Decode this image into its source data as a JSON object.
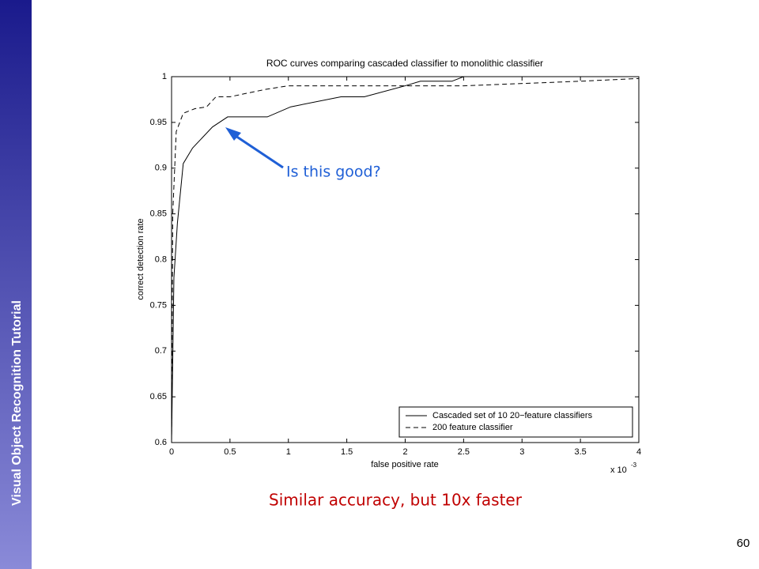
{
  "slide": {
    "sidebar_title": "Visual Object Recognition Tutorial",
    "page_number": "60",
    "annotation": "Is this good?",
    "caption": "Similar accuracy, but 10x faster"
  },
  "chart_data": {
    "type": "line",
    "title": "ROC curves comparing cascaded classifier to monolithic classifier",
    "x_label": "false positive rate",
    "y_label": "correct detection rate",
    "x_multiplier": "x 10",
    "x_multiplier_exponent": "-3",
    "xlim": [
      0,
      4
    ],
    "ylim": [
      0.6,
      1
    ],
    "xticks": [
      0,
      0.5,
      1,
      1.5,
      2,
      2.5,
      3,
      3.5,
      4
    ],
    "yticks": [
      0.6,
      0.65,
      0.7,
      0.75,
      0.8,
      0.85,
      0.9,
      0.95,
      1
    ],
    "legend": "lower right",
    "series": [
      {
        "name": "Cascaded set of 10 20−feature classifiers",
        "color": "#000000",
        "dash": "solid",
        "x": [
          0,
          0.02,
          0.05,
          0.1,
          0.18,
          0.35,
          0.48,
          0.82,
          1.02,
          1.45,
          1.65,
          2.0,
          2.13,
          2.4,
          2.5,
          4
        ],
        "values": [
          0.6,
          0.78,
          0.84,
          0.905,
          0.922,
          0.945,
          0.956,
          0.956,
          0.967,
          0.978,
          0.978,
          0.99,
          0.995,
          0.995,
          1,
          1
        ]
      },
      {
        "name": "200 feature classifier",
        "color": "#000000",
        "dash": "dashed",
        "x": [
          0,
          0.01,
          0.04,
          0.1,
          0.2,
          0.3,
          0.38,
          0.5,
          0.8,
          1.0,
          2.5,
          3.5,
          4
        ],
        "values": [
          0.6,
          0.85,
          0.94,
          0.96,
          0.965,
          0.967,
          0.978,
          0.978,
          0.986,
          0.99,
          0.99,
          0.995,
          0.998
        ]
      }
    ]
  }
}
